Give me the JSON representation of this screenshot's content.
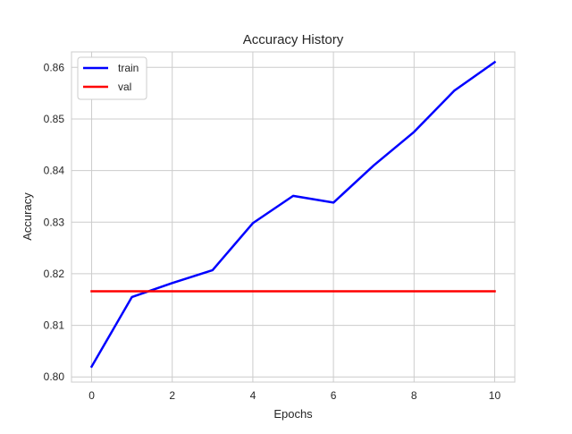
{
  "chart_data": {
    "type": "line",
    "title": "Accuracy History",
    "xlabel": "Epochs",
    "ylabel": "Accuracy",
    "xlim": [
      -0.5,
      10.5
    ],
    "ylim": [
      0.799,
      0.863
    ],
    "xticks": [
      0,
      2,
      4,
      6,
      8,
      10
    ],
    "xtick_labels": [
      "0",
      "2",
      "4",
      "6",
      "8",
      "10"
    ],
    "yticks": [
      0.8,
      0.81,
      0.82,
      0.83,
      0.84,
      0.85,
      0.86
    ],
    "ytick_labels": [
      "0.80",
      "0.81",
      "0.82",
      "0.83",
      "0.84",
      "0.85",
      "0.86"
    ],
    "grid": true,
    "legend_position": "top-left",
    "x": [
      0,
      1,
      2,
      3,
      4,
      5,
      6,
      7,
      8,
      9,
      10
    ],
    "series": [
      {
        "name": "train",
        "color": "#0000ff",
        "values": [
          0.802,
          0.8155,
          0.8182,
          0.8207,
          0.8298,
          0.8351,
          0.8338,
          0.841,
          0.8475,
          0.8555,
          0.861
        ]
      },
      {
        "name": "val",
        "color": "#ff0000",
        "values": [
          0.8166,
          0.8166,
          0.8166,
          0.8166,
          0.8166,
          0.8166,
          0.8166,
          0.8166,
          0.8166,
          0.8166,
          0.8166
        ]
      }
    ]
  }
}
